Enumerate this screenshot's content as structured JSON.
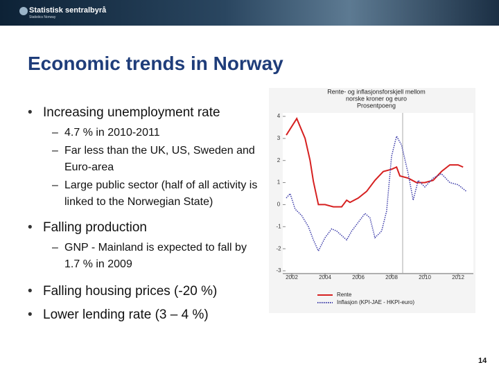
{
  "header": {
    "logo": "Statistisk sentralbyrå",
    "logo_sub": "Statistics Norway"
  },
  "title": "Economic trends in Norway",
  "bullets": [
    {
      "text": "Increasing unemployment rate",
      "sub": [
        "4.7 % in 2010-2011",
        "Far less than the UK, US, Sweden and Euro-area",
        "Large public sector (half of all activity is linked to the Norwegian State)"
      ]
    },
    {
      "text": "Falling production",
      "sub": [
        "GNP - Mainland is expected to fall by 1.7 % in 2009"
      ]
    },
    {
      "text": "Falling housing prices (-20 %)",
      "sub": []
    },
    {
      "text": "Lower lending rate (3 – 4 %)",
      "sub": []
    }
  ],
  "page_number": "14",
  "chart_data": {
    "type": "line",
    "title": [
      "Rente- og inflasjonsforskjell mellom",
      "norske kroner og euro",
      "Prosentpoeng"
    ],
    "xlim": [
      2001.5,
      2012.75
    ],
    "xticks": [
      2002,
      2004,
      2006,
      2008,
      2010,
      2012
    ],
    "ylim": [
      -3,
      4
    ],
    "yticks": [
      4,
      3,
      2,
      1,
      0,
      -1,
      -2,
      -3
    ],
    "series": [
      {
        "name": "Rente",
        "color": "#d62020",
        "dash": false,
        "x": [
          2001.67,
          2002.3,
          2002.8,
          2003.1,
          2003.3,
          2003.6,
          2004,
          2004.5,
          2005,
          2005.3,
          2005.5,
          2006,
          2006.5,
          2007,
          2007.5,
          2008,
          2008.3,
          2008.5,
          2009,
          2009.5,
          2010,
          2010.5,
          2011,
          2011.5,
          2012,
          2012.3
        ],
        "values": [
          3.15,
          3.9,
          3.0,
          2.0,
          1.05,
          0.0,
          0.0,
          -0.1,
          -0.1,
          0.2,
          0.1,
          0.3,
          0.6,
          1.1,
          1.5,
          1.6,
          1.7,
          1.3,
          1.2,
          1.0,
          1.0,
          1.1,
          1.5,
          1.8,
          1.8,
          1.7
        ]
      },
      {
        "name": "Inflasjon (KPI-JAE - HKPI-euro)",
        "color": "#3a3aa8",
        "dash": true,
        "x": [
          2001.67,
          2001.9,
          2002.2,
          2002.6,
          2003,
          2003.3,
          2003.6,
          2004,
          2004.4,
          2004.7,
          2005,
          2005.3,
          2005.6,
          2006,
          2006.4,
          2006.7,
          2007,
          2007.4,
          2007.7,
          2008,
          2008.3,
          2008.6,
          2009,
          2009.3,
          2009.6,
          2010,
          2010.5,
          2011,
          2011.5,
          2012,
          2012.5
        ],
        "values": [
          0.3,
          0.5,
          -0.2,
          -0.5,
          -1.0,
          -1.6,
          -2.1,
          -1.5,
          -1.1,
          -1.2,
          -1.4,
          -1.6,
          -1.2,
          -0.8,
          -0.4,
          -0.6,
          -1.5,
          -1.2,
          -0.3,
          2.2,
          3.1,
          2.7,
          1.4,
          0.2,
          1.1,
          0.8,
          1.2,
          1.4,
          1.0,
          0.9,
          0.6
        ]
      }
    ]
  }
}
